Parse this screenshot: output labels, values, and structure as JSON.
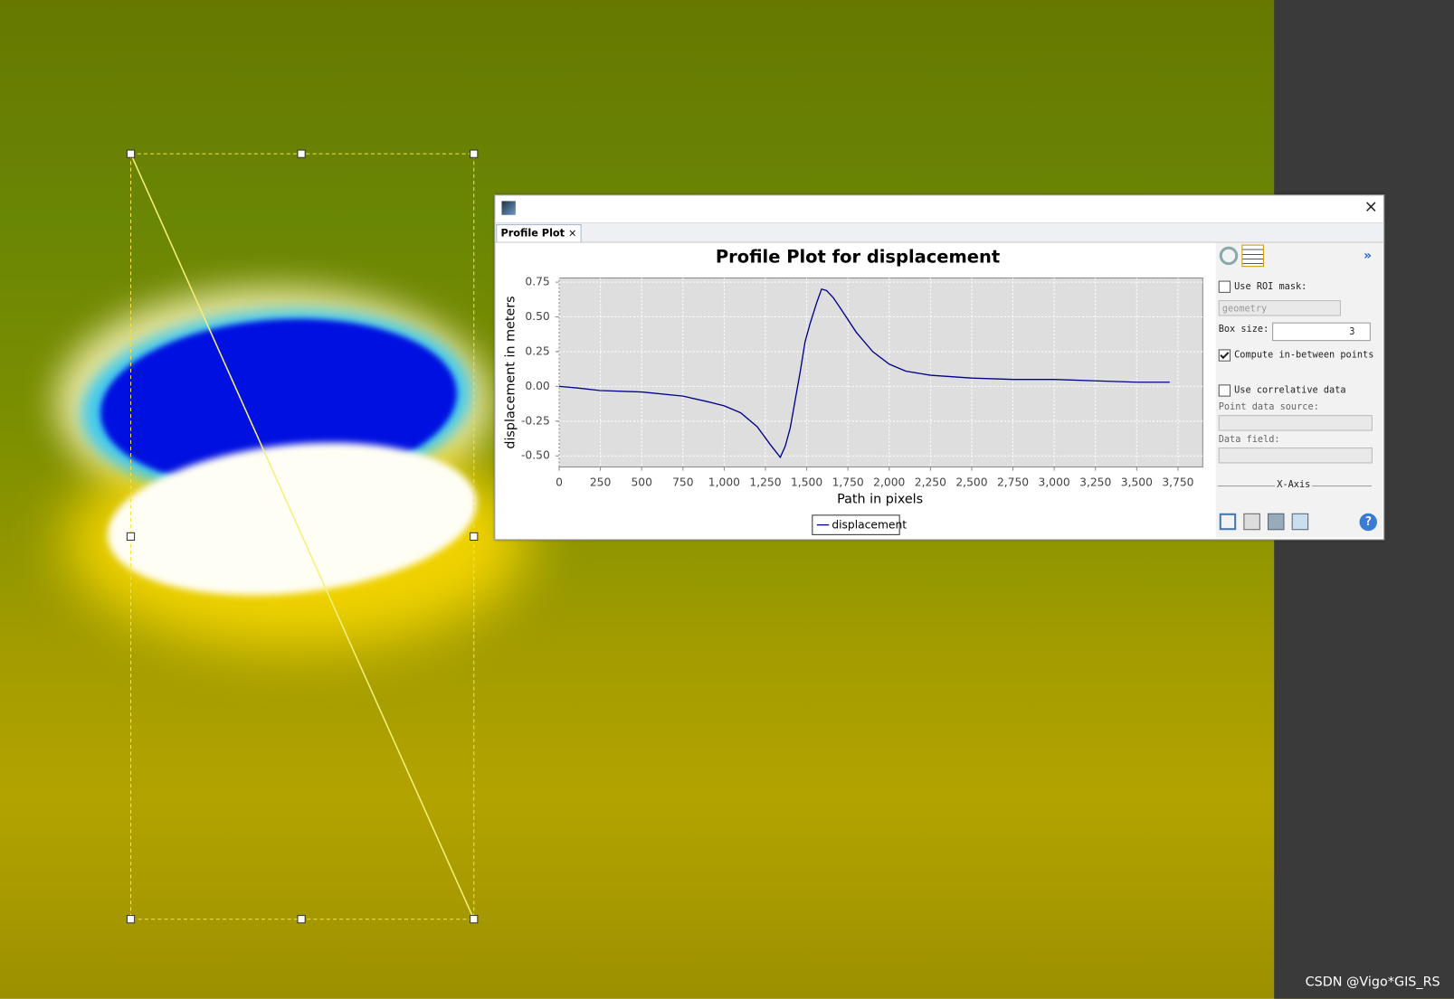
{
  "window": {
    "tab": "Profile Plot"
  },
  "chart_data": {
    "type": "line",
    "title": "Profile Plot for displacement",
    "x_label": "Path in pixels",
    "y_label": "displacement in meters",
    "x": [
      0,
      100,
      250,
      500,
      750,
      900,
      1000,
      1100,
      1200,
      1280,
      1340,
      1370,
      1400,
      1430,
      1460,
      1490,
      1520,
      1560,
      1590,
      1620,
      1660,
      1700,
      1800,
      1900,
      2000,
      2100,
      2250,
      2500,
      2750,
      3000,
      3250,
      3500,
      3700
    ],
    "series": [
      {
        "name": "displacement",
        "color": "#00008b",
        "values": [
          0,
          -0.01,
          -0.03,
          -0.04,
          -0.07,
          -0.11,
          -0.14,
          -0.19,
          -0.29,
          -0.42,
          -0.51,
          -0.43,
          -0.3,
          -0.1,
          0.1,
          0.32,
          0.45,
          0.6,
          0.7,
          0.69,
          0.64,
          0.57,
          0.39,
          0.25,
          0.16,
          0.11,
          0.08,
          0.06,
          0.05,
          0.05,
          0.04,
          0.03,
          0.03
        ]
      }
    ],
    "xlim": [
      0,
      3900
    ],
    "ylim": [
      -0.58,
      0.78
    ],
    "xticks": [
      0,
      250,
      500,
      750,
      {
        "value": 1000,
        "label": "1,000"
      },
      {
        "value": 1250,
        "label": "1,250"
      },
      {
        "value": 1500,
        "label": "1,500"
      },
      {
        "value": 1750,
        "label": "1,750"
      },
      {
        "value": 2000,
        "label": "2,000"
      },
      {
        "value": 2250,
        "label": "2,250"
      },
      {
        "value": 2500,
        "label": "2,500"
      },
      {
        "value": 2750,
        "label": "2,750"
      },
      {
        "value": 3000,
        "label": "3,000"
      },
      {
        "value": 3250,
        "label": "3,250"
      },
      {
        "value": 3500,
        "label": "3,500"
      },
      {
        "value": 3750,
        "label": "3,750"
      }
    ],
    "yticks": [
      {
        "value": 0.75,
        "label": "0.75"
      },
      {
        "value": 0.5,
        "label": "0.50"
      },
      {
        "value": 0.25,
        "label": "0.25"
      },
      {
        "value": 0,
        "label": "0.00"
      },
      {
        "value": -0.25,
        "label": "-0.25"
      },
      {
        "value": -0.5,
        "label": "-0.50"
      }
    ],
    "grid": true,
    "legend": "bottom"
  },
  "side_panel": {
    "use_roi_mask": {
      "label": "Use ROI mask:",
      "checked": false
    },
    "mask": "geometry",
    "box_size": {
      "label": "Box size:",
      "value": 3
    },
    "compute_between": {
      "label": "Compute in-between points",
      "checked": true
    },
    "use_correlative": {
      "label": "Use correlative data",
      "checked": false
    },
    "point_data_source": "Point data source:",
    "data_field": "Data field:",
    "x_axis": "X-Axis"
  },
  "watermark": "CSDN @Vigo*GIS_RS"
}
